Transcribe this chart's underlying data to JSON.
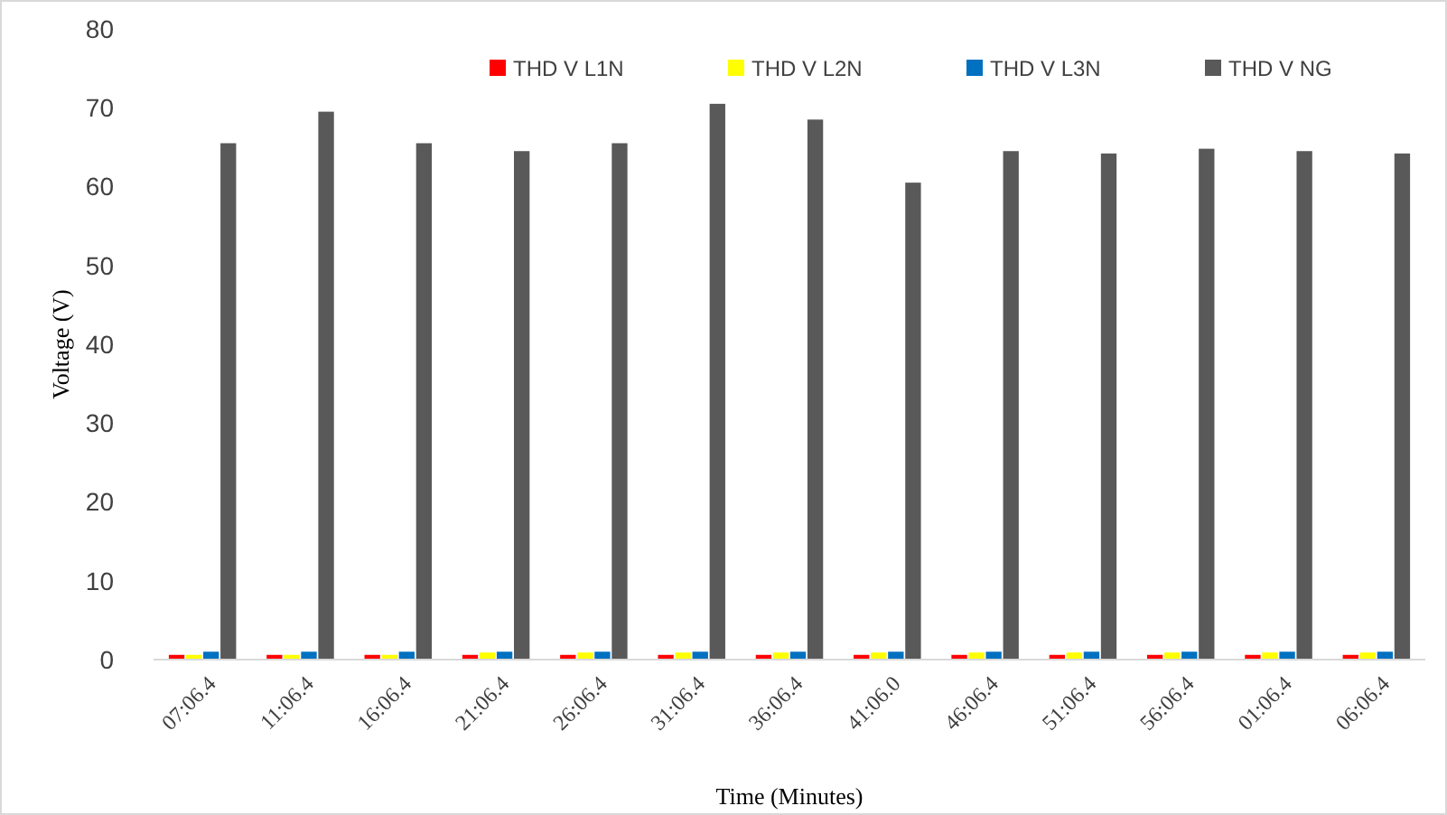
{
  "chart_data": {
    "type": "bar",
    "xlabel": "Time (Minutes)",
    "ylabel": "Voltage (V)",
    "categories": [
      "07:06.4",
      "11:06.4",
      "16:06.4",
      "21:06.4",
      "26:06.4",
      "31:06.4",
      "36:06.4",
      "41:06.0",
      "46:06.4",
      "51:06.4",
      "56:06.4",
      "01:06.4",
      "06:06.4"
    ],
    "series": [
      {
        "name": "THD V L1N",
        "color": "#ff0000",
        "values": [
          0.6,
          0.6,
          0.6,
          0.6,
          0.6,
          0.6,
          0.6,
          0.6,
          0.6,
          0.6,
          0.6,
          0.6,
          0.6
        ]
      },
      {
        "name": "THD V L2N",
        "color": "#ffff00",
        "values": [
          0.6,
          0.6,
          0.6,
          0.9,
          0.9,
          0.9,
          0.9,
          0.9,
          0.9,
          0.9,
          0.9,
          0.9,
          0.9
        ]
      },
      {
        "name": "THD V L3N",
        "color": "#0070c0",
        "values": [
          1,
          1,
          1,
          1,
          1,
          1,
          1,
          1,
          1,
          1,
          1,
          1,
          1
        ]
      },
      {
        "name": "THD V NG",
        "color": "#595959",
        "values": [
          65.5,
          69.5,
          65.5,
          64.5,
          65.5,
          70.5,
          68.5,
          60.5,
          64.5,
          64.2,
          64.8,
          64.5,
          64.2
        ]
      }
    ],
    "ylim": [
      0,
      80
    ],
    "yticks": [
      0,
      10,
      20,
      30,
      40,
      50,
      60,
      70,
      80
    ],
    "grid": false,
    "legend": "top right"
  }
}
